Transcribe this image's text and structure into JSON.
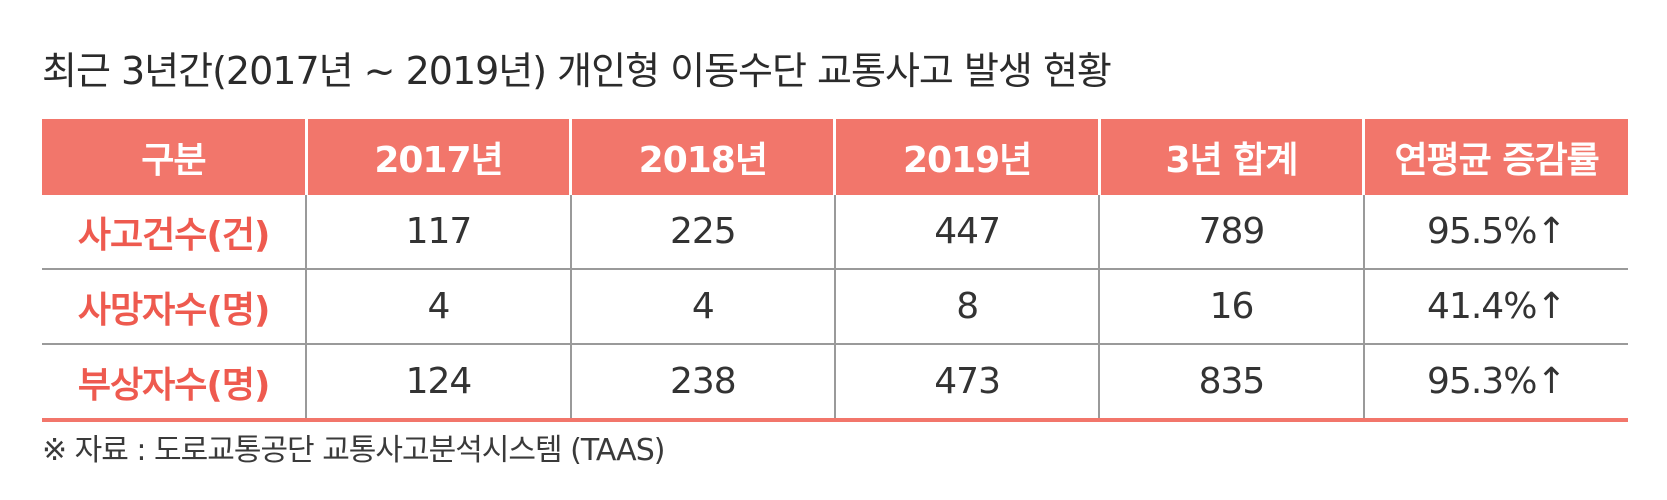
{
  "title": "최근 3년간(2017년 ~ 2019년) 개인형 이동수단 교통사고 발생 현황",
  "table": {
    "headers": [
      "구분",
      "2017년",
      "2018년",
      "2019년",
      "3년 합계",
      "연평균 증감률"
    ],
    "rows": [
      {
        "label": "사고건수(건)",
        "cells": [
          "117",
          "225",
          "447",
          "789",
          "95.5%↑"
        ]
      },
      {
        "label": "사망자수(명)",
        "cells": [
          "4",
          "4",
          "8",
          "16",
          "41.4%↑"
        ]
      },
      {
        "label": "부상자수(명)",
        "cells": [
          "124",
          "238",
          "473",
          "835",
          "95.3%↑"
        ]
      }
    ]
  },
  "source": "※ 자료 : 도로교통공단 교통사고분석시스템 (TAAS)",
  "colors": {
    "header_bg": "#f2766b",
    "row_label": "#ee5a4f",
    "grid": "#9a9a9a"
  }
}
